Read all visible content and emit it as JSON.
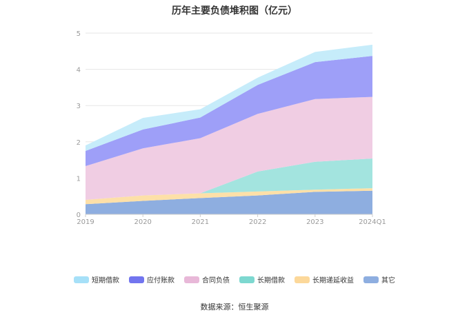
{
  "chart_data": {
    "type": "area",
    "stacked": true,
    "title": "历年主要负债堆积图（亿元）",
    "categories": [
      "2019",
      "2020",
      "2021",
      "2022",
      "2023",
      "2024Q1"
    ],
    "ylim": [
      0,
      5
    ],
    "yticks": [
      "0",
      "1",
      "2",
      "3",
      "4",
      "5"
    ],
    "grid": true,
    "legend_position": "bottom",
    "series": [
      {
        "name": "其它",
        "color": "#8eaee0",
        "values": [
          0.28,
          0.37,
          0.45,
          0.52,
          0.62,
          0.65
        ]
      },
      {
        "name": "长期递延收益",
        "color": "#fde0a8",
        "values": [
          0.12,
          0.15,
          0.13,
          0.11,
          0.06,
          0.07
        ]
      },
      {
        "name": "长期借款",
        "color": "#a3e4df",
        "values": [
          0.0,
          0.0,
          0.0,
          0.55,
          0.77,
          0.82
        ]
      },
      {
        "name": "合同负债",
        "color": "#f0cde3",
        "values": [
          0.93,
          1.3,
          1.52,
          1.59,
          1.73,
          1.7
        ]
      },
      {
        "name": "应付账款",
        "color": "#9e9ff8",
        "values": [
          0.42,
          0.52,
          0.57,
          0.8,
          1.02,
          1.13
        ]
      },
      {
        "name": "短期借款",
        "color": "#c6ecfa",
        "values": [
          0.15,
          0.32,
          0.23,
          0.2,
          0.28,
          0.31
        ]
      }
    ],
    "legend_order": [
      "短期借款",
      "应付账款",
      "合同负债",
      "长期借款",
      "长期递延收益",
      "其它"
    ],
    "legend_colors": {
      "短期借款": "#a6e0f8",
      "应付账款": "#7275ef",
      "合同负债": "#e8b8d8",
      "长期借款": "#7dd8d0",
      "长期递延收益": "#fcd89a",
      "其它": "#8eaee0"
    }
  },
  "source_text": "数据来源：恒生聚源"
}
